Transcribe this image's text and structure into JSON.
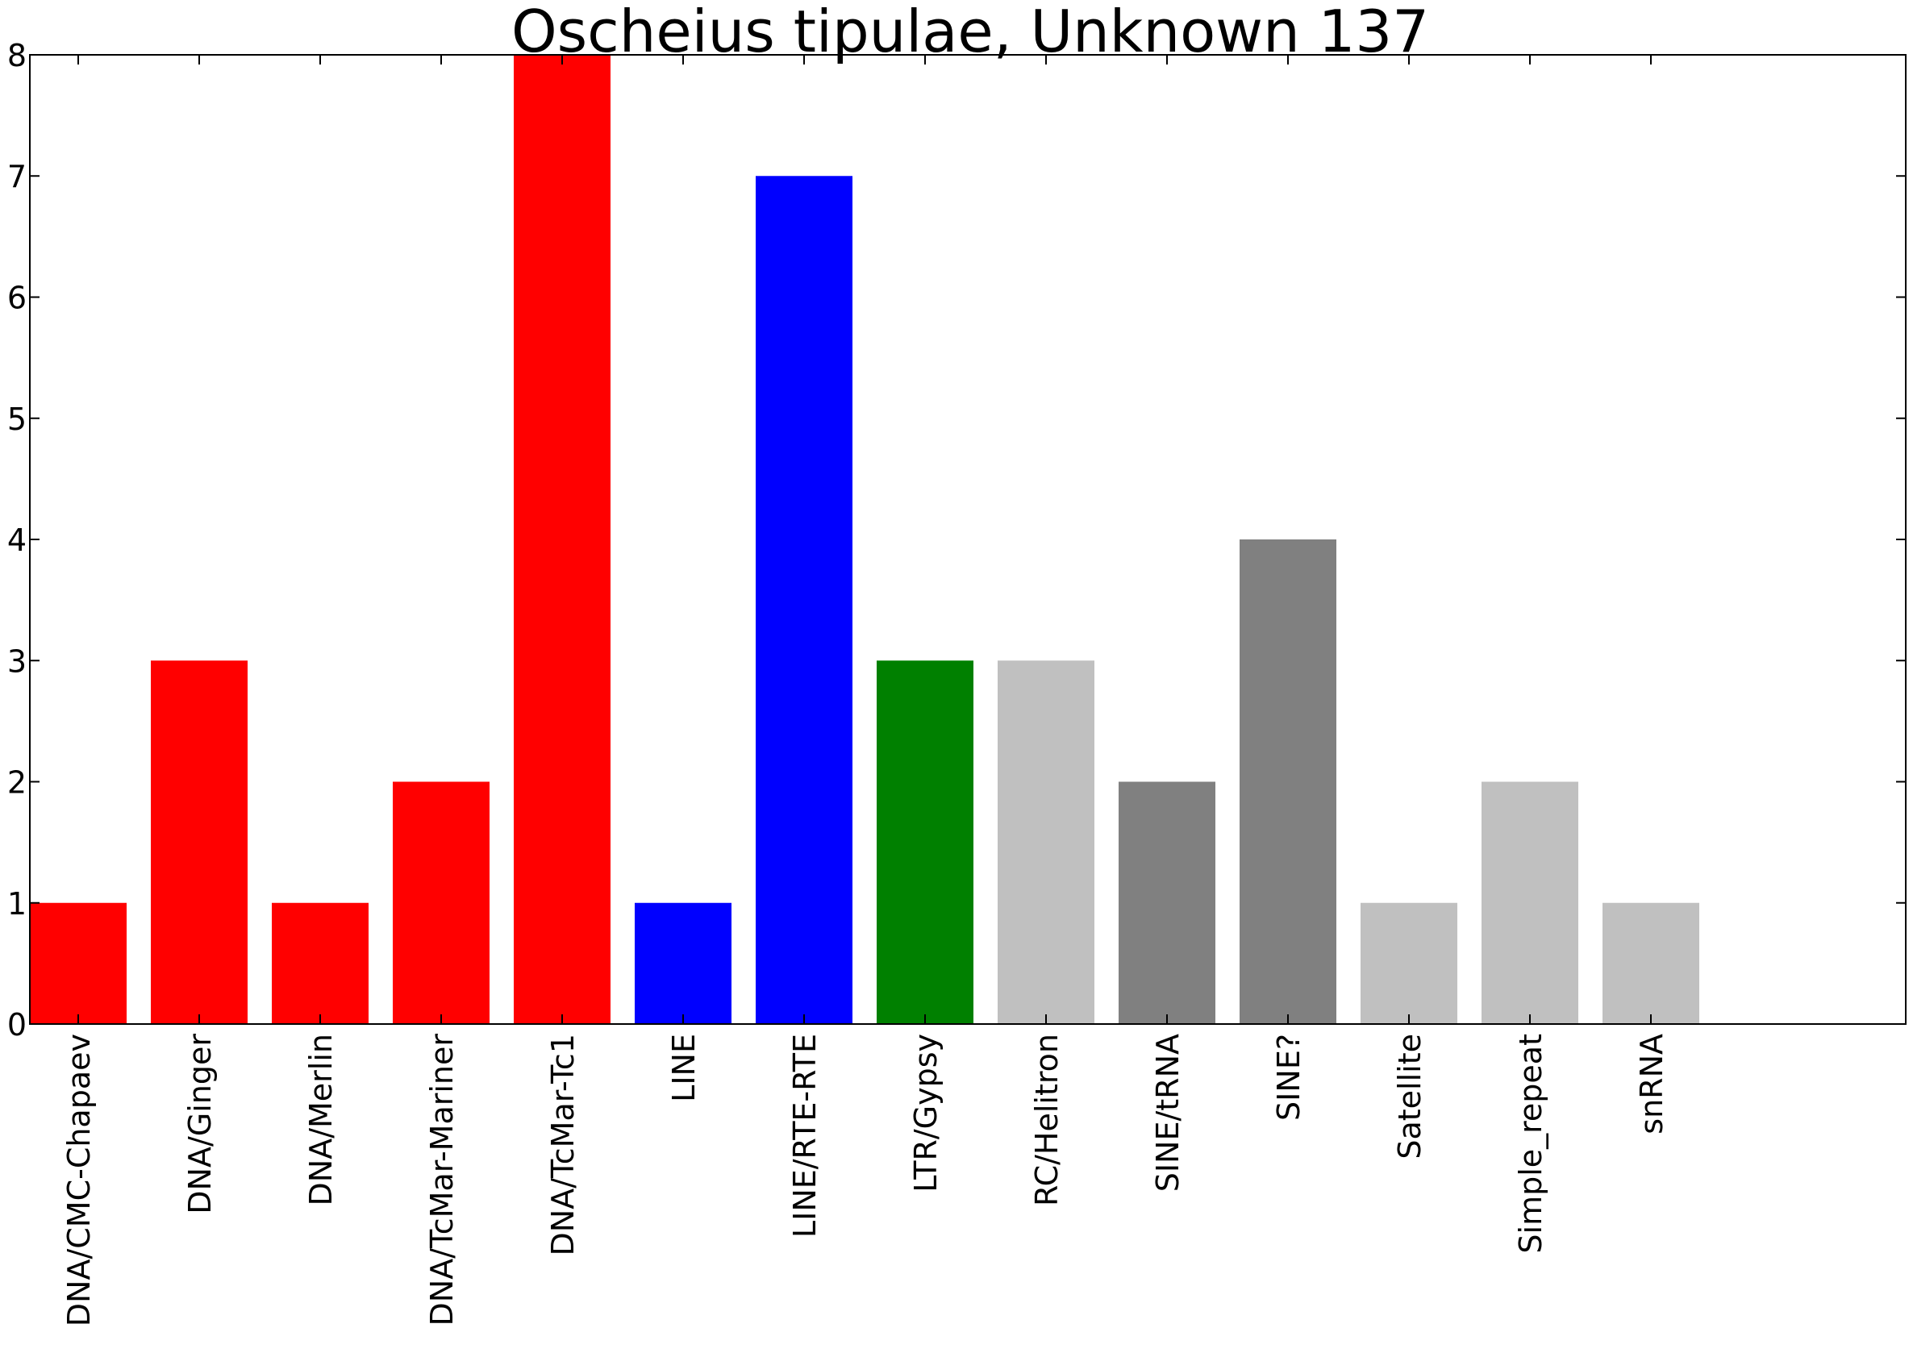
{
  "chart_data": {
    "type": "bar",
    "title": "Oscheius tipulae, Unknown 137",
    "xlabel": "",
    "ylabel": "",
    "ylim": [
      0,
      8
    ],
    "yticks": [
      0,
      1,
      2,
      3,
      4,
      5,
      6,
      7,
      8
    ],
    "grid": false,
    "legend": "none",
    "categories": [
      "DNA/CMC-Chapaev",
      "DNA/Ginger",
      "DNA/Merlin",
      "DNA/TcMar-Mariner",
      "DNA/TcMar-Tc1",
      "LINE",
      "LINE/RTE-RTE",
      "LTR/Gypsy",
      "RC/Helitron",
      "SINE/tRNA",
      "SINE?",
      "Satellite",
      "Simple_repeat",
      "snRNA"
    ],
    "values": [
      1,
      3,
      1,
      2,
      8,
      1,
      7,
      3,
      3,
      2,
      4,
      1,
      2,
      1
    ],
    "colors": [
      "#ff0000",
      "#ff0000",
      "#ff0000",
      "#ff0000",
      "#ff0000",
      "#0000ff",
      "#0000ff",
      "#008000",
      "#c0c0c0",
      "#808080",
      "#808080",
      "#c0c0c0",
      "#c0c0c0",
      "#c0c0c0"
    ]
  }
}
